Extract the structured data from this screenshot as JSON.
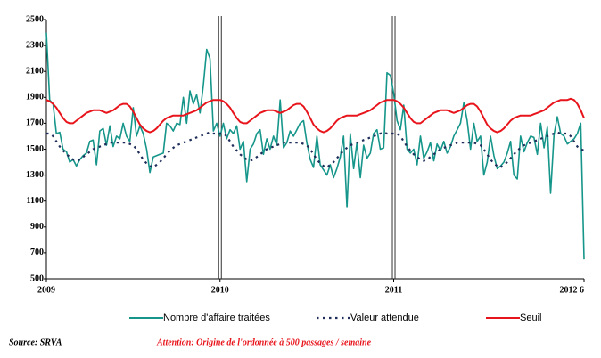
{
  "chart_data": {
    "type": "line",
    "x": [
      0,
      1,
      2,
      3,
      4,
      5,
      6,
      7,
      8,
      9,
      10,
      11,
      12,
      13,
      14,
      15,
      16,
      17,
      18,
      19,
      20,
      21,
      22,
      23,
      24,
      25,
      26,
      27,
      28,
      29,
      30,
      31,
      32,
      33,
      34,
      35,
      36,
      37,
      38,
      39,
      40,
      41,
      42,
      43,
      44,
      45,
      46,
      47,
      48,
      49,
      50,
      51,
      52,
      53,
      54,
      55,
      56,
      57,
      58,
      59,
      60,
      61,
      62,
      63,
      64,
      65,
      66,
      67,
      68,
      69,
      70,
      71,
      72,
      73,
      74,
      75,
      76,
      77,
      78,
      79,
      80,
      81,
      82,
      83,
      84,
      85,
      86,
      87,
      88,
      89,
      90,
      91,
      92,
      93,
      94,
      95,
      96,
      97,
      98,
      99,
      100,
      101,
      102,
      103,
      104,
      105,
      106,
      107,
      108,
      109,
      110,
      111,
      112,
      113,
      114,
      115,
      116,
      117,
      118,
      119,
      120,
      121,
      122,
      123,
      124,
      125,
      126,
      127,
      128,
      129,
      130,
      131,
      132,
      133,
      134,
      135,
      136,
      137,
      138,
      139,
      140,
      141,
      142,
      143,
      144,
      145,
      146,
      147,
      148,
      149,
      150,
      151,
      152,
      153,
      154,
      155,
      156,
      157,
      158,
      159,
      160,
      161
    ],
    "series": [
      {
        "name": "Nombre d'affaire traitées",
        "color": "#16968a",
        "style": "solid",
        "values": [
          2400,
          1880,
          1850,
          1620,
          1630,
          1500,
          1480,
          1400,
          1420,
          1370,
          1420,
          1450,
          1470,
          1560,
          1570,
          1380,
          1640,
          1660,
          1530,
          1680,
          1520,
          1600,
          1580,
          1700,
          1600,
          1560,
          1820,
          1600,
          1680,
          1620,
          1500,
          1320,
          1440,
          1450,
          1460,
          1470,
          1700,
          1680,
          1640,
          1700,
          1690,
          1900,
          1700,
          1950,
          1850,
          1920,
          1780,
          1990,
          2270,
          2200,
          1640,
          1700,
          1600,
          1700,
          1580,
          1650,
          1620,
          1680,
          1500,
          1560,
          1250,
          1500,
          1540,
          1620,
          1650,
          1460,
          1580,
          1500,
          1600,
          1530,
          1880,
          1510,
          1550,
          1640,
          1600,
          1650,
          1700,
          1720,
          1550,
          1420,
          1360,
          1600,
          1380,
          1340,
          1300,
          1380,
          1280,
          1350,
          1440,
          1600,
          1050,
          1620,
          1350,
          1550,
          1280,
          1530,
          1430,
          1470,
          1620,
          1650,
          1500,
          1510,
          2090,
          2070,
          1930,
          1720,
          1650,
          1840,
          1500,
          1470,
          1500,
          1380,
          1600,
          1430,
          1480,
          1550,
          1410,
          1540,
          1490,
          1560,
          1470,
          1520,
          1600,
          1650,
          1700,
          1860,
          1720,
          1500,
          1700,
          1560,
          1600,
          1300,
          1400,
          1600,
          1450,
          1350,
          1370,
          1400,
          1470,
          1560,
          1300,
          1270,
          1600,
          1480,
          1550,
          1600,
          1590,
          1460,
          1700,
          1510,
          1670,
          1160,
          1610,
          1750,
          1620,
          1600,
          1540,
          1560,
          1580,
          1620,
          1700,
          650
        ]
      },
      {
        "name": "Valeur attendue",
        "color": "#1f2d5a",
        "style": "dotted",
        "values": [
          1620,
          1620,
          1600,
          1560,
          1520,
          1490,
          1460,
          1440,
          1420,
          1410,
          1420,
          1440,
          1460,
          1480,
          1500,
          1510,
          1520,
          1530,
          1540,
          1550,
          1550,
          1550,
          1550,
          1550,
          1550,
          1540,
          1530,
          1500,
          1460,
          1420,
          1390,
          1370,
          1360,
          1380,
          1400,
          1430,
          1460,
          1490,
          1510,
          1530,
          1540,
          1550,
          1560,
          1570,
          1580,
          1590,
          1600,
          1610,
          1620,
          1630,
          1620,
          1620,
          1620,
          1620,
          1600,
          1560,
          1520,
          1490,
          1460,
          1440,
          1420,
          1410,
          1420,
          1440,
          1460,
          1480,
          1500,
          1510,
          1520,
          1530,
          1540,
          1550,
          1550,
          1550,
          1550,
          1550,
          1550,
          1540,
          1530,
          1500,
          1460,
          1420,
          1390,
          1370,
          1360,
          1380,
          1400,
          1430,
          1460,
          1490,
          1510,
          1530,
          1540,
          1550,
          1560,
          1570,
          1580,
          1590,
          1600,
          1610,
          1620,
          1630,
          1620,
          1620,
          1620,
          1620,
          1600,
          1560,
          1520,
          1490,
          1460,
          1440,
          1420,
          1410,
          1420,
          1440,
          1460,
          1480,
          1500,
          1510,
          1520,
          1530,
          1540,
          1550,
          1550,
          1550,
          1550,
          1550,
          1550,
          1540,
          1530,
          1500,
          1460,
          1420,
          1390,
          1370,
          1360,
          1380,
          1400,
          1430,
          1460,
          1490,
          1510,
          1530,
          1540,
          1550,
          1560,
          1570,
          1580,
          1590,
          1600,
          1610,
          1620,
          1630,
          1620,
          1620,
          1620,
          1600,
          1560,
          1520,
          1500,
          1490
        ]
      },
      {
        "name": "Seuil",
        "color": "#e8141b",
        "style": "solid",
        "values": [
          1880,
          1870,
          1850,
          1820,
          1780,
          1740,
          1710,
          1700,
          1700,
          1720,
          1740,
          1760,
          1780,
          1790,
          1800,
          1800,
          1800,
          1790,
          1780,
          1790,
          1800,
          1820,
          1840,
          1850,
          1850,
          1830,
          1790,
          1740,
          1690,
          1660,
          1640,
          1630,
          1640,
          1660,
          1690,
          1720,
          1740,
          1750,
          1760,
          1760,
          1760,
          1760,
          1770,
          1780,
          1790,
          1800,
          1820,
          1840,
          1860,
          1870,
          1880,
          1880,
          1880,
          1870,
          1850,
          1820,
          1780,
          1740,
          1710,
          1700,
          1700,
          1720,
          1740,
          1760,
          1780,
          1790,
          1800,
          1800,
          1800,
          1790,
          1780,
          1790,
          1800,
          1820,
          1840,
          1850,
          1850,
          1830,
          1790,
          1740,
          1690,
          1660,
          1640,
          1630,
          1640,
          1660,
          1690,
          1720,
          1740,
          1750,
          1760,
          1760,
          1760,
          1760,
          1770,
          1780,
          1790,
          1800,
          1820,
          1840,
          1860,
          1870,
          1880,
          1880,
          1880,
          1870,
          1850,
          1820,
          1780,
          1740,
          1710,
          1700,
          1700,
          1720,
          1740,
          1760,
          1780,
          1790,
          1800,
          1800,
          1800,
          1790,
          1780,
          1790,
          1800,
          1820,
          1840,
          1850,
          1850,
          1830,
          1790,
          1740,
          1690,
          1660,
          1640,
          1630,
          1640,
          1660,
          1690,
          1720,
          1740,
          1750,
          1760,
          1760,
          1760,
          1760,
          1770,
          1780,
          1790,
          1800,
          1820,
          1840,
          1860,
          1870,
          1880,
          1880,
          1880,
          1890,
          1880,
          1850,
          1800,
          1740
        ]
      }
    ],
    "xlim": [
      0,
      161
    ],
    "xticks": [
      {
        "value": 0,
        "label": "2009"
      },
      {
        "value": 52,
        "label": "2010"
      },
      {
        "value": 104,
        "label": "2011"
      },
      {
        "value": 161,
        "label": "2012 6"
      }
    ],
    "year_separators": [
      52,
      104
    ],
    "ylim": [
      500,
      2500
    ],
    "yticks": [
      500,
      700,
      900,
      1100,
      1300,
      1500,
      1700,
      1900,
      2100,
      2300,
      2500
    ],
    "grid": false,
    "legend": "bottom",
    "source": "Source: SRVA",
    "note": "Attention: Origine de l'ordonnée à 500 passages / semaine"
  }
}
